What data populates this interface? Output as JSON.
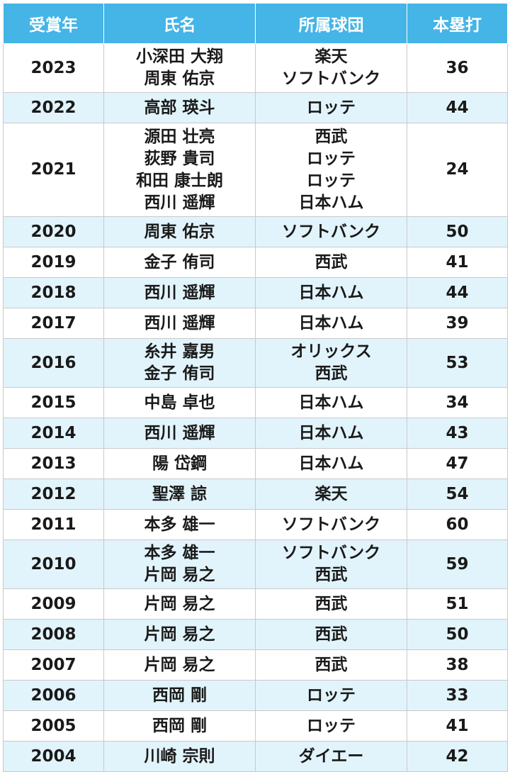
{
  "header": {
    "year": "受賞年",
    "name": "氏名",
    "team": "所属球団",
    "hr": "本塁打"
  },
  "rows": [
    {
      "year": "2023",
      "names": [
        "小深田 大翔",
        "周東 佑京"
      ],
      "teams": [
        "楽天",
        "ソフトバンク"
      ],
      "hr": "36"
    },
    {
      "year": "2022",
      "names": [
        "高部 瑛斗"
      ],
      "teams": [
        "ロッテ"
      ],
      "hr": "44"
    },
    {
      "year": "2021",
      "names": [
        "源田 壮亮",
        "荻野 貴司",
        "和田 康士朗",
        "西川 遥輝"
      ],
      "teams": [
        "西武",
        "ロッテ",
        "ロッテ",
        "日本ハム"
      ],
      "hr": "24"
    },
    {
      "year": "2020",
      "names": [
        "周東 佑京"
      ],
      "teams": [
        "ソフトバンク"
      ],
      "hr": "50"
    },
    {
      "year": "2019",
      "names": [
        "金子 侑司"
      ],
      "teams": [
        "西武"
      ],
      "hr": "41"
    },
    {
      "year": "2018",
      "names": [
        "西川 遥輝"
      ],
      "teams": [
        "日本ハム"
      ],
      "hr": "44"
    },
    {
      "year": "2017",
      "names": [
        "西川 遥輝"
      ],
      "teams": [
        "日本ハム"
      ],
      "hr": "39"
    },
    {
      "year": "2016",
      "names": [
        "糸井 嘉男",
        "金子 侑司"
      ],
      "teams": [
        "オリックス",
        "西武"
      ],
      "hr": "53"
    },
    {
      "year": "2015",
      "names": [
        "中島 卓也"
      ],
      "teams": [
        "日本ハム"
      ],
      "hr": "34"
    },
    {
      "year": "2014",
      "names": [
        "西川 遥輝"
      ],
      "teams": [
        "日本ハム"
      ],
      "hr": "43"
    },
    {
      "year": "2013",
      "names": [
        "陽 岱鋼"
      ],
      "teams": [
        "日本ハム"
      ],
      "hr": "47"
    },
    {
      "year": "2012",
      "names": [
        "聖澤 諒"
      ],
      "teams": [
        "楽天"
      ],
      "hr": "54"
    },
    {
      "year": "2011",
      "names": [
        "本多 雄一"
      ],
      "teams": [
        "ソフトバンク"
      ],
      "hr": "60"
    },
    {
      "year": "2010",
      "names": [
        "本多 雄一",
        "片岡 易之"
      ],
      "teams": [
        "ソフトバンク",
        "西武"
      ],
      "hr": "59"
    },
    {
      "year": "2009",
      "names": [
        "片岡 易之"
      ],
      "teams": [
        "西武"
      ],
      "hr": "51"
    },
    {
      "year": "2008",
      "names": [
        "片岡 易之"
      ],
      "teams": [
        "西武"
      ],
      "hr": "50"
    },
    {
      "year": "2007",
      "names": [
        "片岡 易之"
      ],
      "teams": [
        "西武"
      ],
      "hr": "38"
    },
    {
      "year": "2006",
      "names": [
        "西岡 剛"
      ],
      "teams": [
        "ロッテ"
      ],
      "hr": "33"
    },
    {
      "year": "2005",
      "names": [
        "西岡 剛"
      ],
      "teams": [
        "ロッテ"
      ],
      "hr": "41"
    },
    {
      "year": "2004",
      "names": [
        "川崎 宗則"
      ],
      "teams": [
        "ダイエー"
      ],
      "hr": "42"
    }
  ]
}
